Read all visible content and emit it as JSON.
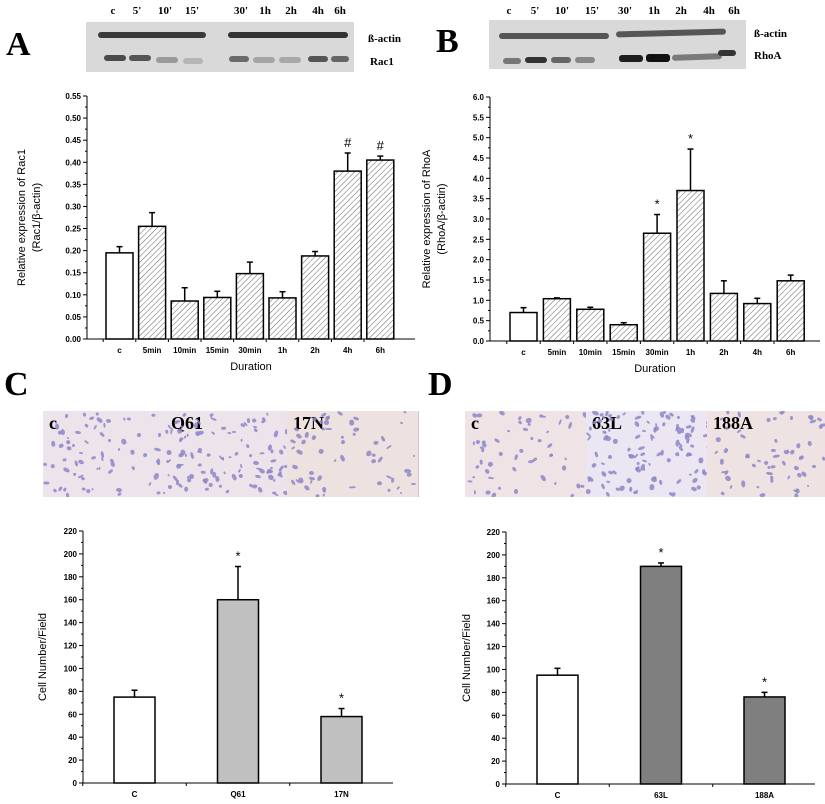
{
  "panels": {
    "A": {
      "letter": "A"
    },
    "B": {
      "letter": "B"
    },
    "C": {
      "letter": "C"
    },
    "D": {
      "letter": "D"
    }
  },
  "blots": {
    "A": {
      "lanes": [
        "c",
        "5'",
        "10'",
        "15'",
        "30'",
        "1h",
        "2h",
        "4h",
        "6h"
      ],
      "rows": [
        "ß-actin",
        "Rac1"
      ]
    },
    "B": {
      "lanes": [
        "c",
        "5'",
        "10'",
        "15'",
        "30'",
        "1h",
        "2h",
        "4h",
        "6h"
      ],
      "rows": [
        "ß-actin",
        "RhoA"
      ]
    }
  },
  "micrographs": {
    "C": [
      {
        "label": "c"
      },
      {
        "label": "Q61"
      },
      {
        "label": "17N"
      }
    ],
    "D": [
      {
        "label": "c"
      },
      {
        "label": "63L"
      },
      {
        "label": "188A"
      }
    ]
  },
  "chart_data": [
    {
      "id": "A",
      "type": "bar",
      "title": "",
      "xlabel": "Duration",
      "ylabel": "Relative expression of Rac1",
      "ylabel2": "(Rac1/β-actin)",
      "categories": [
        "c",
        "5min",
        "10min",
        "15min",
        "30min",
        "1h",
        "2h",
        "4h",
        "6h"
      ],
      "values": [
        0.195,
        0.255,
        0.086,
        0.094,
        0.148,
        0.093,
        0.188,
        0.38,
        0.405
      ],
      "errors": [
        0.014,
        0.031,
        0.03,
        0.014,
        0.026,
        0.014,
        0.01,
        0.041,
        0.009
      ],
      "annotations": [
        "",
        "",
        "",
        "",
        "",
        "",
        "",
        "#",
        "#"
      ],
      "fills": [
        "white",
        "hatch",
        "hatch",
        "hatch",
        "hatch",
        "hatch",
        "hatch",
        "hatch",
        "hatch"
      ],
      "ylim": [
        0,
        0.55
      ],
      "yticks": [
        "0.00",
        "0.05",
        "0.10",
        "0.15",
        "0.20",
        "0.25",
        "0.30",
        "0.35",
        "0.40",
        "0.45",
        "0.50",
        "0.55"
      ],
      "grid": false
    },
    {
      "id": "B",
      "type": "bar",
      "title": "",
      "xlabel": "Duration",
      "ylabel": "Relative expression of RhoA",
      "ylabel2": "(RhoA/β-actin)",
      "categories": [
        "c",
        "5min",
        "10min",
        "15min",
        "30min",
        "1h",
        "2h",
        "4h",
        "6h"
      ],
      "values": [
        0.7,
        1.04,
        0.78,
        0.4,
        2.65,
        3.7,
        1.17,
        0.92,
        1.48
      ],
      "errors": [
        0.12,
        0.02,
        0.05,
        0.05,
        0.46,
        1.02,
        0.31,
        0.13,
        0.14
      ],
      "annotations": [
        "",
        "",
        "",
        "",
        "*",
        "*",
        "",
        "",
        ""
      ],
      "fills": [
        "white",
        "hatch",
        "hatch",
        "hatch",
        "hatch",
        "hatch",
        "hatch",
        "hatch",
        "hatch"
      ],
      "ylim": [
        0,
        6.0
      ],
      "yticks": [
        "0.0",
        "0.5",
        "1.0",
        "1.5",
        "2.0",
        "2.5",
        "3.0",
        "3.5",
        "4.0",
        "4.5",
        "5.0",
        "5.5",
        "6.0"
      ],
      "grid": false
    },
    {
      "id": "C",
      "type": "bar",
      "title": "",
      "xlabel": "",
      "ylabel": "Cell Number/Field",
      "categories": [
        "C",
        "Q61",
        "17N"
      ],
      "values": [
        75,
        160,
        58
      ],
      "errors": [
        6,
        29,
        7
      ],
      "annotations": [
        "",
        "*",
        "*"
      ],
      "fills": [
        "#ffffff",
        "#c0c0c0",
        "#c0c0c0"
      ],
      "ylim": [
        0,
        220
      ],
      "yticks": [
        "0",
        "20",
        "40",
        "60",
        "80",
        "100",
        "120",
        "140",
        "160",
        "180",
        "200",
        "220"
      ],
      "grid": false
    },
    {
      "id": "D",
      "type": "bar",
      "title": "",
      "xlabel": "",
      "ylabel": "Cell Number/Field",
      "categories": [
        "C",
        "63L",
        "188A"
      ],
      "values": [
        95,
        190,
        76
      ],
      "errors": [
        6,
        3,
        4
      ],
      "annotations": [
        "",
        "*",
        "*"
      ],
      "fills": [
        "#ffffff",
        "#7f7f7f",
        "#7f7f7f"
      ],
      "ylim": [
        0,
        220
      ],
      "yticks": [
        "0",
        "20",
        "40",
        "60",
        "80",
        "100",
        "120",
        "140",
        "160",
        "180",
        "200",
        "220"
      ],
      "grid": false
    }
  ]
}
